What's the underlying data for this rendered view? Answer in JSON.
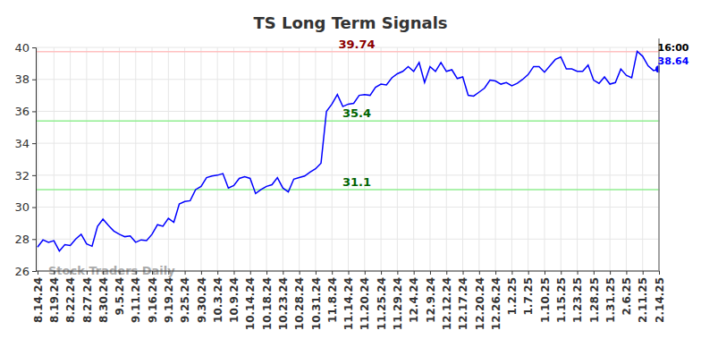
{
  "chart_data": {
    "type": "line",
    "title": "TS Long Term Signals",
    "watermark": "Stock Traders Daily",
    "categories": [
      "8.14.24",
      null,
      null,
      "8.19.24",
      null,
      null,
      "8.22.24",
      null,
      null,
      "8.27.24",
      null,
      null,
      "8.30.24",
      null,
      null,
      "9.5.24",
      null,
      null,
      "9.11.24",
      null,
      null,
      "9.16.24",
      null,
      null,
      "9.19.24",
      null,
      null,
      "9.25.24",
      null,
      null,
      "9.30.24",
      null,
      null,
      "10.3.24",
      null,
      null,
      "10.9.24",
      null,
      null,
      "10.14.24",
      null,
      null,
      "10.18.24",
      null,
      null,
      "10.23.24",
      null,
      null,
      "10.28.24",
      null,
      null,
      "10.31.24",
      null,
      null,
      "11.8.24",
      null,
      null,
      "11.14.24",
      null,
      null,
      "11.20.24",
      null,
      null,
      "11.25.24",
      null,
      null,
      "11.29.24",
      null,
      null,
      "12.4.24",
      null,
      null,
      "12.9.24",
      null,
      null,
      "12.12.24",
      null,
      null,
      "12.17.24",
      null,
      null,
      "12.20.24",
      null,
      null,
      "12.26.24",
      null,
      null,
      "1.2.25",
      null,
      null,
      "1.7.25",
      null,
      null,
      "1.10.25",
      null,
      null,
      "1.15.25",
      null,
      null,
      "1.23.25",
      null,
      null,
      "1.28.25",
      null,
      null,
      "1.31.25",
      null,
      null,
      "2.6.25",
      null,
      null,
      "2.11.25",
      null,
      null,
      "2.14.25"
    ],
    "values": [
      27.5,
      27.95,
      27.8,
      27.9,
      27.25,
      27.65,
      27.6,
      28.0,
      28.3,
      27.7,
      27.55,
      28.8,
      29.25,
      28.85,
      28.5,
      28.3,
      28.15,
      28.2,
      27.8,
      27.95,
      27.9,
      28.3,
      28.9,
      28.8,
      29.3,
      29.05,
      30.2,
      30.35,
      30.4,
      31.1,
      31.3,
      31.85,
      31.95,
      32.0,
      32.1,
      31.2,
      31.35,
      31.8,
      31.9,
      31.8,
      30.85,
      31.1,
      31.3,
      31.4,
      31.85,
      31.2,
      30.95,
      31.75,
      31.85,
      31.95,
      32.2,
      32.4,
      32.75,
      36.0,
      36.45,
      37.05,
      36.3,
      36.45,
      36.5,
      37.0,
      37.05,
      37.0,
      37.5,
      37.7,
      37.65,
      38.1,
      38.35,
      38.5,
      38.8,
      38.5,
      39.05,
      37.8,
      38.8,
      38.5,
      39.05,
      38.5,
      38.6,
      38.05,
      38.15,
      37.0,
      36.95,
      37.2,
      37.45,
      37.95,
      37.9,
      37.7,
      37.8,
      37.6,
      37.75,
      38.0,
      38.3,
      38.8,
      38.8,
      38.45,
      38.85,
      39.25,
      39.4,
      38.65,
      38.65,
      38.5,
      38.5,
      38.9,
      37.95,
      37.75,
      38.15,
      37.7,
      37.8,
      38.65,
      38.25,
      38.1,
      39.75,
      39.45,
      38.85,
      38.55,
      38.64
    ],
    "color": "#0000ff",
    "ylim": [
      26,
      40
    ],
    "yticks": [
      26,
      28,
      30,
      32,
      34,
      36,
      38,
      40
    ],
    "grid": true,
    "annotations": [
      {
        "value": 39.74,
        "label": "39.74",
        "color": "#ffc0c0",
        "text_color": "#8b0000"
      },
      {
        "value": 35.4,
        "label": "35.4",
        "color": "#90ee90",
        "text_color": "#006400"
      },
      {
        "value": 31.1,
        "label": "31.1",
        "color": "#90ee90",
        "text_color": "#006400"
      }
    ],
    "end_label": {
      "time": "16:00",
      "value_label": "38.64"
    }
  }
}
